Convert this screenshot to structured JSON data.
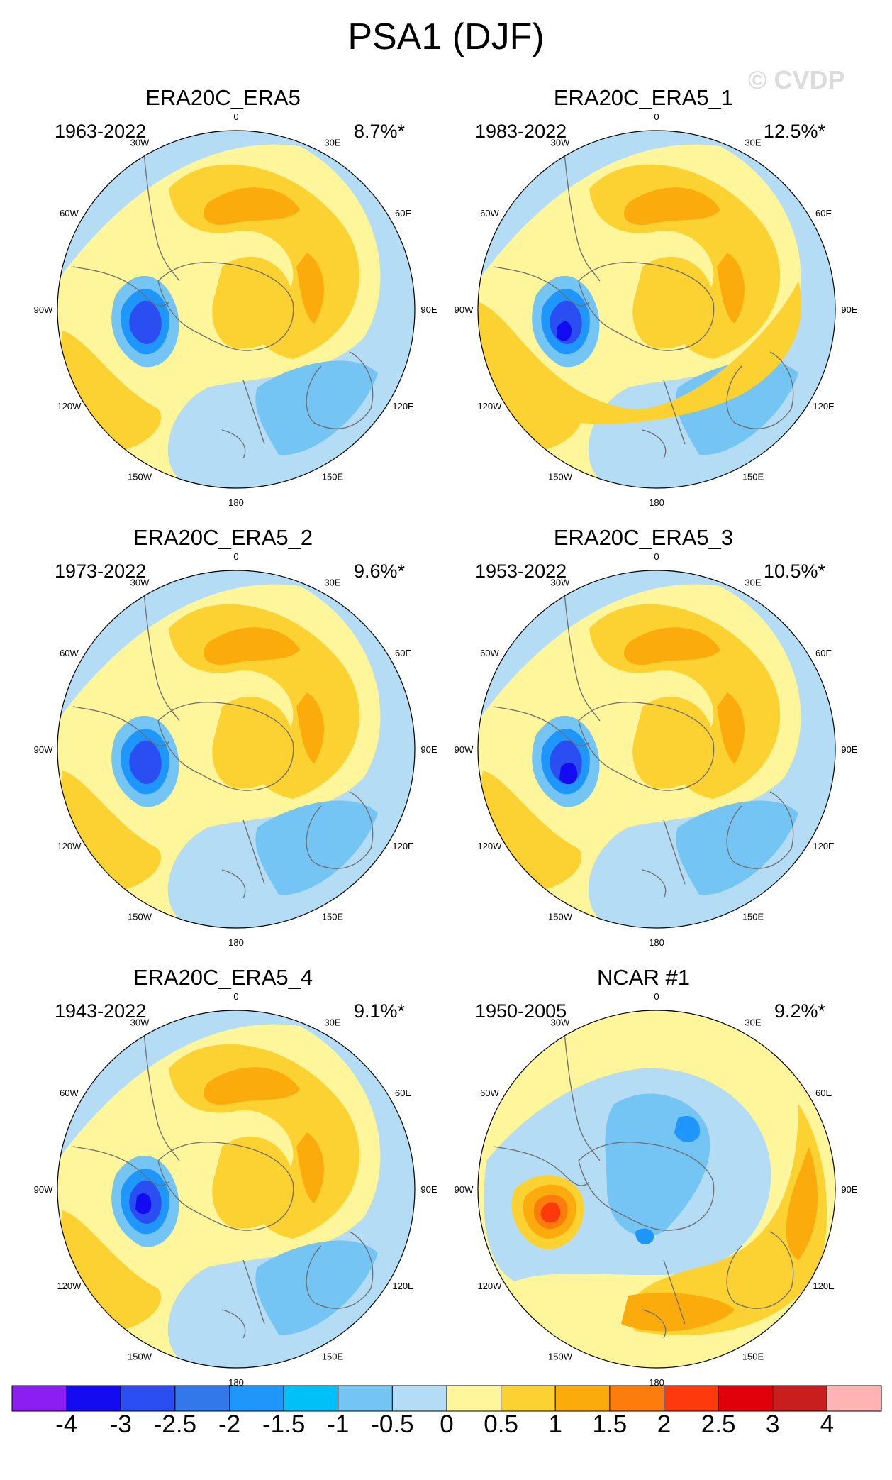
{
  "title": "PSA1 (DJF)",
  "watermark": "© CVDP",
  "lon_labels": [
    "0",
    "30E",
    "60E",
    "90E",
    "120E",
    "150E",
    "180",
    "150W",
    "120W",
    "90W",
    "60W",
    "30W"
  ],
  "colors": {
    "pos_weak": "#fff59a",
    "pos_mod": "#fcd232",
    "pos_strong": "#fcab0c",
    "pos_stronger": "#fc7c0c",
    "pos_max": "#fc3a0c",
    "neg_weak": "#b4dcf4",
    "neg_mod": "#74c4f4",
    "neg_strong": "#1e96fb",
    "neg_stronger": "#2a4ef1",
    "neg_max": "#140cf0",
    "coast": "#6e6e6e"
  },
  "panels": [
    {
      "title": "ERA20C_ERA5",
      "years": "1963-2022",
      "pct": "8.7%*"
    },
    {
      "title": "ERA20C_ERA5_1",
      "years": "1983-2022",
      "pct": "12.5%*"
    },
    {
      "title": "ERA20C_ERA5_2",
      "years": "1973-2022",
      "pct": "9.6%*"
    },
    {
      "title": "ERA20C_ERA5_3",
      "years": "1953-2022",
      "pct": "10.5%*"
    },
    {
      "title": "ERA20C_ERA5_4",
      "years": "1943-2022",
      "pct": "9.1%*"
    },
    {
      "title": "NCAR #1",
      "years": "1950-2005",
      "pct": "9.2%*"
    }
  ],
  "colorbar": {
    "colors": [
      "#8b1ef0",
      "#140cf0",
      "#2a4ef1",
      "#3278ea",
      "#1e96fb",
      "#00c0f8",
      "#74c4f4",
      "#b4dcf4",
      "#fff59a",
      "#fcd232",
      "#fcab0c",
      "#fc7c0c",
      "#fc3a0c",
      "#e0000a",
      "#c81e1e",
      "#ffb4b4"
    ],
    "ticks": [
      "-4",
      "-3",
      "-2.5",
      "-2",
      "-1.5",
      "-1",
      "-0.5",
      "0",
      "0.5",
      "1",
      "1.5",
      "2",
      "2.5",
      "3",
      "4"
    ]
  }
}
